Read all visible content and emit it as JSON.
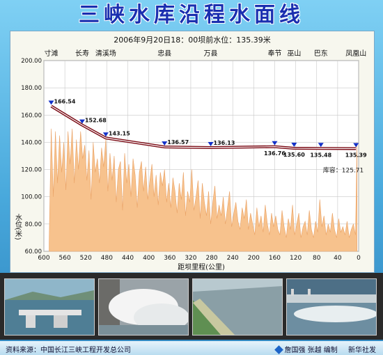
{
  "title": "三峡水库沿程水面线",
  "chart_data": {
    "type": "area",
    "subtitle": "2006年9月20日18：00坝前水位：135.39米",
    "xlabel": "距坝里程(公里)",
    "ylabel": "水位(米)",
    "xlim": [
      600,
      0
    ],
    "ylim": [
      60,
      200
    ],
    "x_ticks": [
      600,
      560,
      520,
      480,
      440,
      400,
      360,
      320,
      280,
      240,
      200,
      160,
      120,
      80,
      40,
      0
    ],
    "y_ticks": [
      60,
      80,
      100,
      120,
      140,
      160,
      180,
      200
    ],
    "y_tick_labels": [
      "60.00",
      "80.00",
      "100.00",
      "120.00",
      "140.00",
      "160.00",
      "180.00",
      "200.00"
    ],
    "grid": true,
    "stations": [
      {
        "name": "寸滩",
        "x": 586,
        "level": 166.54
      },
      {
        "name": "长寿",
        "x": 527,
        "level": 152.68
      },
      {
        "name": "清溪场",
        "x": 482,
        "level": 143.15
      },
      {
        "name": "忠县",
        "x": 370,
        "level": 136.57
      },
      {
        "name": "万县",
        "x": 282,
        "level": 136.13
      },
      {
        "name": "奉节",
        "x": 160,
        "level": 136.76
      },
      {
        "name": "巫山",
        "x": 123,
        "level": 135.6
      },
      {
        "name": "巴东",
        "x": 72,
        "level": 135.48
      },
      {
        "name": "凤凰山",
        "x": 5,
        "level": 135.39
      }
    ],
    "capacity_label": "库容：125.71",
    "riverbed": {
      "x": [
        590,
        586,
        582,
        578,
        574,
        570,
        566,
        562,
        558,
        554,
        550,
        546,
        542,
        538,
        534,
        530,
        526,
        522,
        518,
        514,
        510,
        506,
        502,
        498,
        494,
        490,
        486,
        482,
        478,
        474,
        470,
        466,
        462,
        458,
        454,
        450,
        446,
        442,
        438,
        434,
        430,
        426,
        422,
        418,
        414,
        410,
        406,
        402,
        398,
        394,
        390,
        386,
        382,
        378,
        374,
        370,
        366,
        362,
        358,
        354,
        350,
        346,
        342,
        338,
        334,
        330,
        326,
        322,
        318,
        314,
        310,
        306,
        302,
        298,
        294,
        290,
        286,
        282,
        278,
        274,
        270,
        266,
        262,
        258,
        254,
        250,
        246,
        242,
        238,
        234,
        230,
        226,
        222,
        218,
        214,
        210,
        206,
        202,
        198,
        194,
        190,
        186,
        182,
        178,
        174,
        170,
        166,
        162,
        158,
        154,
        150,
        146,
        142,
        138,
        134,
        130,
        126,
        122,
        118,
        114,
        110,
        106,
        102,
        98,
        94,
        90,
        86,
        82,
        78,
        74,
        70,
        66,
        62,
        58,
        54,
        50,
        46,
        42,
        38,
        34,
        30,
        26,
        22,
        18,
        14,
        10,
        6,
        3
      ],
      "y": [
        66,
        150,
        100,
        148,
        110,
        145,
        118,
        140,
        105,
        148,
        124,
        150,
        110,
        142,
        120,
        148,
        128,
        138,
        112,
        134,
        98,
        140,
        118,
        128,
        110,
        136,
        122,
        142,
        104,
        132,
        112,
        130,
        96,
        120,
        126,
        90,
        132,
        110,
        124,
        100,
        128,
        116,
        92,
        118,
        126,
        104,
        122,
        98,
        112,
        124,
        100,
        116,
        94,
        118,
        108,
        120,
        96,
        110,
        92,
        114,
        104,
        88,
        110,
        98,
        118,
        86,
        104,
        96,
        120,
        90,
        100,
        112,
        84,
        110,
        96,
        86,
        104,
        80,
        96,
        108,
        84,
        94,
        86,
        100,
        80,
        92,
        104,
        78,
        88,
        96,
        82,
        76,
        92,
        84,
        98,
        76,
        88,
        80,
        72,
        92,
        78,
        86,
        74,
        94,
        80,
        72,
        88,
        78,
        86,
        76,
        72,
        90,
        78,
        70,
        84,
        76,
        94,
        72,
        80,
        88,
        70,
        78,
        82,
        72,
        90,
        76,
        70,
        82,
        74,
        98,
        78,
        86,
        72,
        80,
        74,
        88,
        76,
        70,
        84,
        74,
        78,
        72,
        82,
        70,
        76,
        80,
        72,
        140
      ]
    }
  },
  "footer": {
    "source": "资料来源：中国长江三峡工程开发总公司",
    "author": "詹国强 张越 编制",
    "agency": "新华社发"
  }
}
